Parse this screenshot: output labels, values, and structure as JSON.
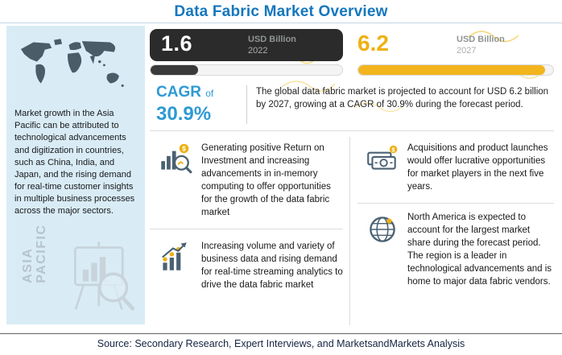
{
  "title": "Data Fabric Market Overview",
  "left_panel": {
    "description": "Market growth in the Asia Pacific can be attributed to technological advancements and digitization in countries, such as China, India, and Japan, and the rising demand for real-time customer insights in multiple business processes across the major sectors.",
    "region_label_line1": "ASIA",
    "region_label_line2": "PACIFIC"
  },
  "market_size": {
    "start_value": "1.6",
    "start_unit": "USD Billion",
    "start_year": "2022",
    "end_value": "6.2",
    "end_unit": "USD Billion",
    "end_year": "2027"
  },
  "cagr": {
    "label_main": "CAGR",
    "label_suffix": "of",
    "value": "30.9%",
    "summary": "The global data fabric market is projected to account for USD 6.2 billion by 2027, growing at a CAGR of 30.9% during the forecast period."
  },
  "insights": [
    {
      "icon": "roi-analytics-icon",
      "text": "Generating positive Return on Investment and increasing advancements in in-memory computing to offer opportunities for the growth of the data fabric market"
    },
    {
      "icon": "cash-icon",
      "text": "Acquisitions and product launches would offer lucrative opportunities for market players in the next five years."
    },
    {
      "icon": "growth-chart-icon",
      "text": "Increasing volume and variety of business data and rising demand for real-time streaming analytics to drive the data fabric market"
    },
    {
      "icon": "globe-icon",
      "text": "North America is expected to account for the largest market share during the forecast period. The region is a leader in technological advancements and is home to major data fabric vendors."
    }
  ],
  "source": "Source: Secondary Research, Expert Interviews, and MarketsandMarkets Analysis",
  "colors": {
    "title_blue": "#1577be",
    "cagr_blue": "#2e9ad3",
    "accent_yellow": "#eeb111",
    "dark_card": "#2b2b2b",
    "panel_blue": "#d9ecf6",
    "icon_slate": "#4a6172"
  },
  "chart_data": {
    "type": "bar",
    "categories": [
      "2022",
      "2027"
    ],
    "values": [
      1.6,
      6.2
    ],
    "title": "Data Fabric Market Overview",
    "unit": "USD Billion",
    "cagr_percent": 30.9,
    "annotations": [
      "CAGR of 30.9%",
      "The global data fabric market is projected to account for USD 6.2 billion by 2027, growing at a CAGR of 30.9% during the forecast period."
    ],
    "legend_position": "none",
    "grid": false
  }
}
